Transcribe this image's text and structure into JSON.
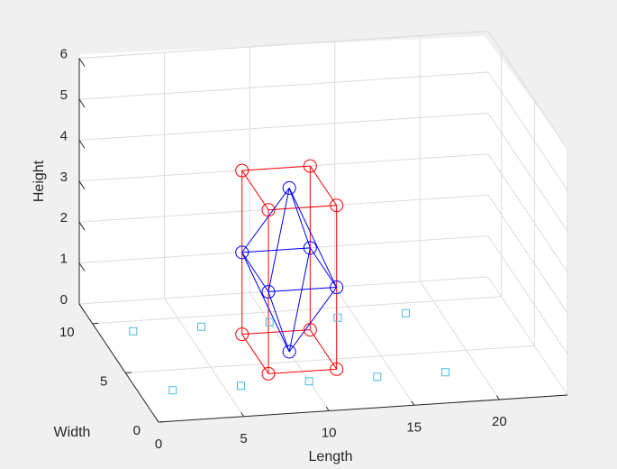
{
  "chart_data": {
    "type": "scatter3d",
    "title": "",
    "xlabel": "Length",
    "ylabel": "Width",
    "zlabel": "Height",
    "xlim": [
      0,
      24
    ],
    "ylim": [
      0,
      12
    ],
    "zlim": [
      0,
      6
    ],
    "xticks": [
      "0",
      "5",
      "10",
      "15",
      "20"
    ],
    "yticks": [
      "0",
      "5",
      "10"
    ],
    "zticks": [
      "0",
      "1",
      "2",
      "3",
      "4",
      "5",
      "6"
    ],
    "grid": true,
    "colors": {
      "box": "#ff0000",
      "octahedron": "#0000ff",
      "ground": "#4db8e6",
      "grid": "#dcdcdc",
      "axes": "#262626"
    },
    "series": [
      {
        "marker": "circle",
        "color": "#ff0000",
        "points": [
          {
            "x": 8,
            "y": 4,
            "z": 0
          },
          {
            "x": 12,
            "y": 4,
            "z": 0
          },
          {
            "x": 12,
            "y": 8,
            "z": 0
          },
          {
            "x": 8,
            "y": 8,
            "z": 0
          },
          {
            "x": 8,
            "y": 4,
            "z": 4
          },
          {
            "x": 12,
            "y": 4,
            "z": 4
          },
          {
            "x": 12,
            "y": 8,
            "z": 4
          },
          {
            "x": 8,
            "y": 8,
            "z": 4
          }
        ],
        "edges": [
          [
            0,
            1
          ],
          [
            1,
            2
          ],
          [
            2,
            3
          ],
          [
            3,
            0
          ],
          [
            4,
            5
          ],
          [
            5,
            6
          ],
          [
            6,
            7
          ],
          [
            7,
            4
          ],
          [
            0,
            4
          ],
          [
            1,
            5
          ],
          [
            2,
            6
          ],
          [
            3,
            7
          ]
        ]
      },
      {
        "marker": "circle",
        "color": "#0000ff",
        "points": [
          {
            "x": 10,
            "y": 6,
            "z": 0
          },
          {
            "x": 10,
            "y": 6,
            "z": 4
          },
          {
            "x": 8,
            "y": 4,
            "z": 2
          },
          {
            "x": 12,
            "y": 4,
            "z": 2
          },
          {
            "x": 12,
            "y": 8,
            "z": 2
          },
          {
            "x": 8,
            "y": 8,
            "z": 2
          }
        ],
        "edges": [
          [
            2,
            3
          ],
          [
            3,
            4
          ],
          [
            4,
            5
          ],
          [
            5,
            2
          ],
          [
            0,
            2
          ],
          [
            0,
            3
          ],
          [
            0,
            4
          ],
          [
            0,
            5
          ],
          [
            1,
            2
          ],
          [
            1,
            3
          ],
          [
            1,
            4
          ],
          [
            1,
            5
          ]
        ]
      },
      {
        "marker": "square",
        "color": "#4db8e6",
        "points": [
          {
            "x": 2,
            "y": 3,
            "z": 0
          },
          {
            "x": 6,
            "y": 3,
            "z": 0
          },
          {
            "x": 10,
            "y": 3,
            "z": 0
          },
          {
            "x": 14,
            "y": 3,
            "z": 0
          },
          {
            "x": 18,
            "y": 3,
            "z": 0
          },
          {
            "x": 2,
            "y": 9,
            "z": 0
          },
          {
            "x": 6,
            "y": 9,
            "z": 0
          },
          {
            "x": 10,
            "y": 9,
            "z": 0
          },
          {
            "x": 14,
            "y": 9,
            "z": 0
          },
          {
            "x": 18,
            "y": 9,
            "z": 0
          }
        ]
      }
    ]
  }
}
